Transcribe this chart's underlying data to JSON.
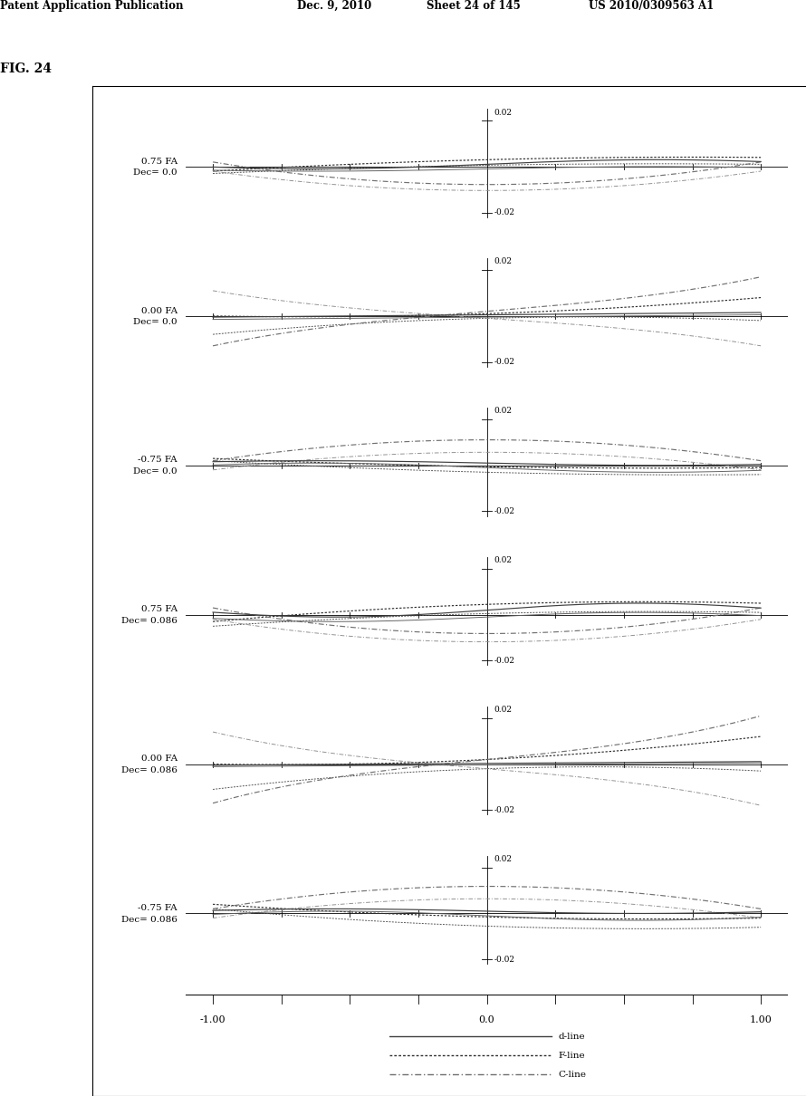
{
  "header_left": "Patent Application Publication",
  "header_mid": "Dec. 9, 2010",
  "header_sheet": "Sheet 24 of 145",
  "header_right": "US 2010/0309563 A1",
  "fig_label": "FIG. 24",
  "subplots": [
    {
      "label": "0.75 FA\nDec= 0.0"
    },
    {
      "label": "0.00 FA\nDec= 0.0"
    },
    {
      "label": "-0.75 FA\nDec= 0.0"
    },
    {
      "label": "0.75 FA\nDec= 0.086"
    },
    {
      "label": "0.00 FA\nDec= 0.086"
    },
    {
      "label": "-0.75 FA\nDec= 0.086"
    }
  ],
  "ylim": [
    -0.03,
    0.03
  ],
  "xlim": [
    -1.1,
    1.1
  ],
  "background_color": "#ffffff"
}
